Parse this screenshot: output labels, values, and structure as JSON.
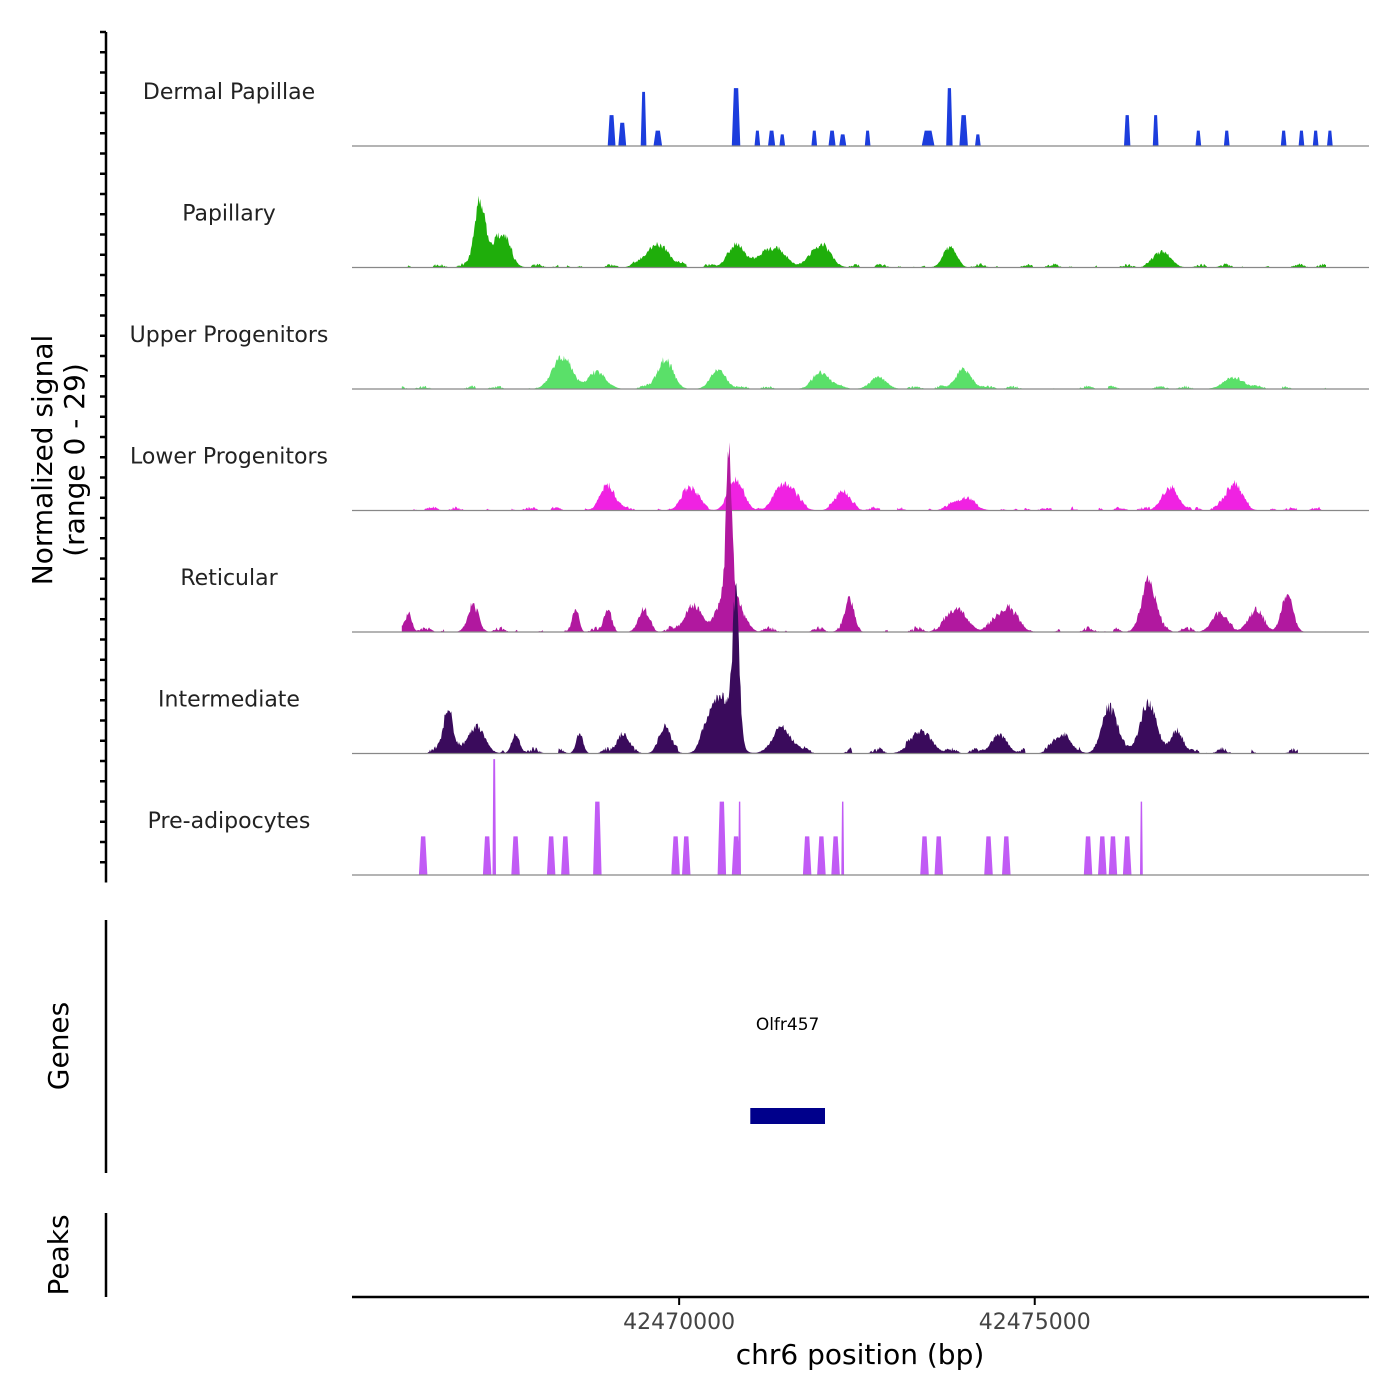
{
  "chart_data": {
    "type": "area",
    "title": "",
    "ylabel_line1": "Normalized signal",
    "ylabel_line2": "(range 0 - 29)",
    "ylim": [
      0,
      29
    ],
    "xlabel": "chr6 position (bp)",
    "xlim": [
      42465400,
      42479700
    ],
    "xticks": [
      {
        "value": 42470000,
        "label": "42470000"
      },
      {
        "value": 42475000,
        "label": "42475000"
      }
    ],
    "tracks": [
      {
        "name": "Dermal Papillae",
        "color": "#1c3ddd",
        "style": "bars",
        "peaks": [
          [
            42469050,
            55,
            8
          ],
          [
            42469200,
            55,
            6
          ],
          [
            42469500,
            40,
            14
          ],
          [
            42469700,
            60,
            4
          ],
          [
            42470800,
            60,
            15
          ],
          [
            42471100,
            40,
            4
          ],
          [
            42471300,
            50,
            4
          ],
          [
            42471450,
            40,
            3
          ],
          [
            42471900,
            40,
            4
          ],
          [
            42472150,
            50,
            4
          ],
          [
            42472300,
            50,
            3
          ],
          [
            42472650,
            40,
            4
          ],
          [
            42473500,
            90,
            4
          ],
          [
            42473800,
            45,
            15
          ],
          [
            42474000,
            60,
            8
          ],
          [
            42474200,
            40,
            3
          ],
          [
            42476300,
            45,
            8
          ],
          [
            42476700,
            40,
            8
          ],
          [
            42477300,
            40,
            4
          ],
          [
            42477700,
            40,
            4
          ],
          [
            42478500,
            40,
            4
          ],
          [
            42478750,
            40,
            4
          ],
          [
            42478950,
            40,
            4
          ],
          [
            42479150,
            40,
            4
          ]
        ]
      },
      {
        "name": "Papillary",
        "color": "#1fae0b",
        "style": "noisy",
        "range": [
          42466100,
          42479100
        ],
        "seed": 3,
        "base": 0.7,
        "peaks": [
          [
            42467200,
            110,
            17
          ],
          [
            42467500,
            160,
            9
          ],
          [
            42469700,
            220,
            6
          ],
          [
            42470800,
            160,
            6
          ],
          [
            42471300,
            250,
            5
          ],
          [
            42472000,
            180,
            6
          ],
          [
            42473800,
            130,
            5
          ],
          [
            42476800,
            160,
            4
          ]
        ]
      },
      {
        "name": "Upper Progenitors",
        "color": "#5ae069",
        "style": "noisy",
        "range": [
          42466100,
          42479100
        ],
        "seed": 7,
        "base": 0.6,
        "peaks": [
          [
            42468350,
            190,
            8
          ],
          [
            42468850,
            180,
            4
          ],
          [
            42469800,
            160,
            7
          ],
          [
            42470550,
            150,
            5
          ],
          [
            42472000,
            170,
            4
          ],
          [
            42472800,
            160,
            3
          ],
          [
            42474000,
            160,
            5
          ],
          [
            42477800,
            200,
            3
          ]
        ]
      },
      {
        "name": "Lower Progenitors",
        "color": "#f022e2",
        "style": "noisy",
        "range": [
          42466100,
          42479100
        ],
        "seed": 11,
        "base": 0.7,
        "peaks": [
          [
            42469000,
            150,
            6
          ],
          [
            42470150,
            160,
            6
          ],
          [
            42470800,
            150,
            8
          ],
          [
            42471500,
            200,
            7
          ],
          [
            42472300,
            150,
            5
          ],
          [
            42474000,
            200,
            3
          ],
          [
            42476900,
            160,
            6
          ],
          [
            42477800,
            160,
            7
          ]
        ]
      },
      {
        "name": "Reticular",
        "color": "#b1189f",
        "style": "noisy",
        "range": [
          42466100,
          42479100
        ],
        "seed": 19,
        "base": 1.0,
        "peaks": [
          [
            42466200,
            60,
            5
          ],
          [
            42467100,
            110,
            6
          ],
          [
            42468550,
            60,
            5
          ],
          [
            42469000,
            70,
            6
          ],
          [
            42469500,
            110,
            5
          ],
          [
            42470200,
            160,
            7
          ],
          [
            42470700,
            55,
            34
          ],
          [
            42470700,
            200,
            12
          ],
          [
            42472400,
            90,
            8
          ],
          [
            42473900,
            200,
            6
          ],
          [
            42474600,
            200,
            6
          ],
          [
            42476600,
            140,
            13
          ],
          [
            42477600,
            150,
            5
          ],
          [
            42478100,
            150,
            5
          ],
          [
            42478550,
            110,
            10
          ]
        ]
      },
      {
        "name": "Intermediate",
        "color": "#3a0b5c",
        "style": "noisy",
        "range": [
          42466100,
          42478700
        ],
        "seed": 29,
        "base": 1.1,
        "peaks": [
          [
            42466750,
            90,
            12
          ],
          [
            42467150,
            160,
            7
          ],
          [
            42467700,
            80,
            5
          ],
          [
            42468600,
            70,
            5
          ],
          [
            42469200,
            100,
            5
          ],
          [
            42469800,
            120,
            7
          ],
          [
            42470450,
            160,
            8
          ],
          [
            42470800,
            65,
            35
          ],
          [
            42470650,
            180,
            12
          ],
          [
            42471450,
            200,
            6
          ],
          [
            42473400,
            200,
            6
          ],
          [
            42474500,
            150,
            5
          ],
          [
            42475400,
            160,
            5
          ],
          [
            42476050,
            150,
            12
          ],
          [
            42476600,
            170,
            12
          ],
          [
            42477000,
            120,
            6
          ]
        ]
      },
      {
        "name": "Pre-adipocytes",
        "color": "#c15bf5",
        "style": "bars",
        "peaks": [
          [
            42466400,
            60,
            10
          ],
          [
            42467300,
            60,
            10
          ],
          [
            42467400,
            25,
            30
          ],
          [
            42467700,
            60,
            10
          ],
          [
            42468200,
            60,
            10
          ],
          [
            42468400,
            60,
            10
          ],
          [
            42468850,
            60,
            19
          ],
          [
            42469950,
            60,
            10
          ],
          [
            42470100,
            60,
            10
          ],
          [
            42470600,
            60,
            19
          ],
          [
            42470800,
            60,
            10
          ],
          [
            42470850,
            20,
            19
          ],
          [
            42471800,
            60,
            10
          ],
          [
            42472000,
            60,
            10
          ],
          [
            42472200,
            60,
            10
          ],
          [
            42472300,
            20,
            19
          ],
          [
            42473450,
            60,
            10
          ],
          [
            42473650,
            60,
            10
          ],
          [
            42474350,
            60,
            10
          ],
          [
            42474600,
            60,
            10
          ],
          [
            42475750,
            60,
            10
          ],
          [
            42475950,
            60,
            10
          ],
          [
            42476100,
            60,
            10
          ],
          [
            42476300,
            60,
            10
          ],
          [
            42476500,
            20,
            19
          ]
        ]
      }
    ],
    "genes_label": "Genes",
    "gene": {
      "name": "Olfr457",
      "start": 42471000,
      "end": 42472050,
      "color": "#00008b"
    },
    "peaks_label": "Peaks"
  }
}
